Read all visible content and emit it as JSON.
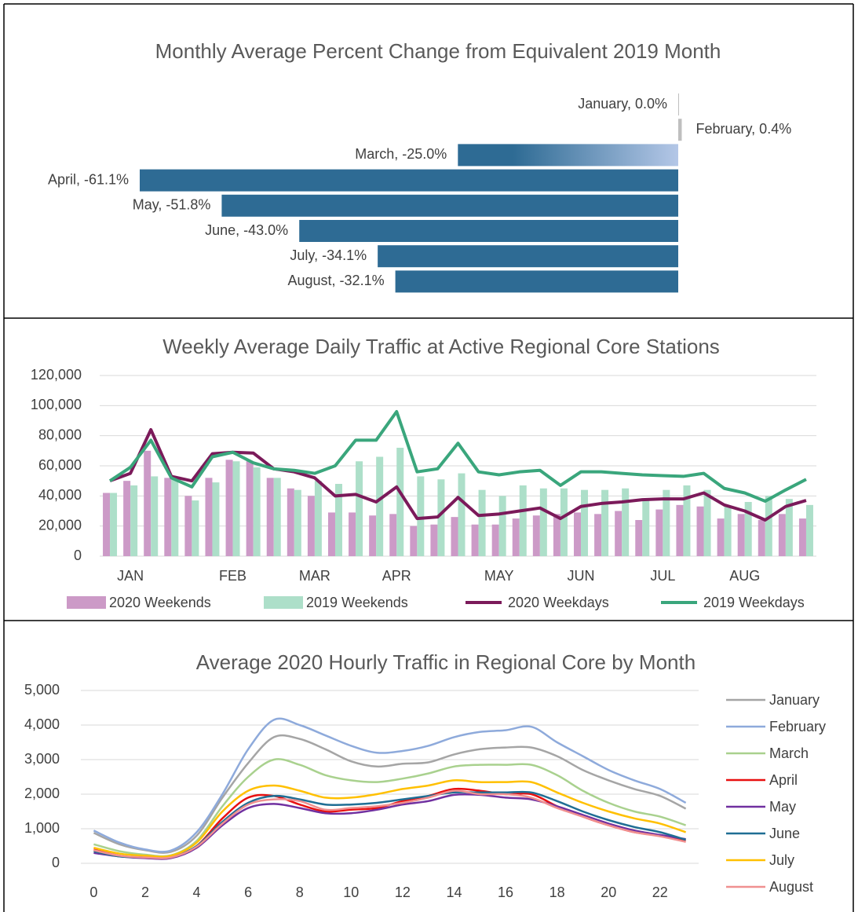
{
  "chart_data": [
    {
      "type": "bar",
      "orientation": "horizontal",
      "title": "Monthly Average Percent Change from Equivalent 2019 Month",
      "values": [
        0.0,
        0.4,
        -25.0,
        -61.1,
        -51.8,
        -43.0,
        -34.1,
        -32.1
      ],
      "value_labels": [
        "January, 0.0%",
        "February, 0.4%",
        "March, -25.0%",
        "April, -61.1%",
        "May, -51.8%",
        "June, -43.0%",
        "July, -34.1%",
        "August, -32.1%"
      ],
      "colors": [
        "#bfbfbf",
        "#bfbfbf",
        [
          "#2e6b94",
          "#b4c7e7"
        ],
        "#2e6b94",
        "#2e6b94",
        "#2e6b94",
        "#2e6b94",
        "#2e6b94"
      ]
    },
    {
      "type": "combo",
      "title": "Weekly Average Daily Traffic at Active Regional Core Stations",
      "categories": [
        null,
        "JAN",
        null,
        null,
        null,
        null,
        "FEB",
        null,
        null,
        null,
        "MAR",
        null,
        null,
        null,
        "APR",
        null,
        null,
        null,
        null,
        "MAY",
        null,
        null,
        null,
        "JUN",
        null,
        null,
        null,
        "JUL",
        null,
        null,
        null,
        "AUG",
        null,
        null,
        null
      ],
      "series": [
        {
          "name": "2020 Weekends",
          "type": "bar",
          "color": "#cc9ac7",
          "values": [
            42000,
            50000,
            70000,
            52000,
            40000,
            52000,
            64000,
            63000,
            52000,
            45000,
            40000,
            29000,
            29000,
            27000,
            28000,
            20000,
            21000,
            26000,
            21000,
            21000,
            25000,
            27000,
            28000,
            29000,
            28000,
            30000,
            24000,
            31000,
            34000,
            33000,
            25000,
            28000,
            24000,
            28000,
            25000
          ]
        },
        {
          "name": "2019 Weekends",
          "type": "bar",
          "color": "#addfc9",
          "values": [
            42000,
            47000,
            53000,
            52000,
            37000,
            49000,
            63000,
            59000,
            52000,
            44000,
            50000,
            48000,
            63000,
            66000,
            72000,
            53000,
            51000,
            55000,
            44000,
            40000,
            47000,
            45000,
            45000,
            44000,
            44000,
            45000,
            38000,
            44000,
            47000,
            44000,
            33000,
            36000,
            40000,
            38000,
            34000
          ]
        },
        {
          "name": "2020 Weekdays",
          "type": "line",
          "color": "#7b1a5a",
          "values": [
            50000,
            55000,
            84000,
            53000,
            50000,
            68000,
            69000,
            68500,
            58000,
            56000,
            52000,
            40000,
            41000,
            36000,
            46000,
            25000,
            26000,
            39000,
            27000,
            28000,
            30000,
            32000,
            25000,
            33000,
            35000,
            36000,
            37500,
            38000,
            38000,
            42000,
            34000,
            30000,
            24000,
            33000,
            37000
          ]
        },
        {
          "name": "2019 Weekdays",
          "type": "line",
          "color": "#3aa67c",
          "values": [
            50000,
            59000,
            77000,
            52000,
            46000,
            66000,
            69000,
            62000,
            58000,
            57000,
            55000,
            60000,
            77000,
            77000,
            96000,
            56000,
            58000,
            75000,
            56000,
            54000,
            56000,
            57000,
            47000,
            56000,
            56000,
            55000,
            54000,
            53500,
            53000,
            55000,
            45000,
            42000,
            36500,
            44000,
            51000
          ]
        }
      ],
      "ylim": [
        0,
        120000
      ],
      "yticks": [
        0,
        {
          "value": 20000,
          "label": "20,000"
        },
        {
          "value": 40000,
          "label": "40,000"
        },
        {
          "value": 60000,
          "label": "60,000"
        },
        {
          "value": 80000,
          "label": "80,000"
        },
        {
          "value": 100000,
          "label": "100,000"
        },
        {
          "value": 120000,
          "label": "120,000"
        }
      ],
      "grid": true,
      "legend": "bottom"
    },
    {
      "type": "line",
      "smooth": true,
      "title": "Average 2020 Hourly Traffic in Regional Core by Month",
      "x": [
        0,
        1,
        2,
        3,
        4,
        5,
        6,
        7,
        8,
        9,
        10,
        11,
        12,
        13,
        14,
        15,
        16,
        17,
        18,
        19,
        20,
        21,
        22,
        23
      ],
      "series": [
        {
          "name": "January",
          "color": "#a5a5a5",
          "values": [
            880,
            550,
            380,
            330,
            800,
            1900,
            2900,
            3650,
            3600,
            3300,
            2950,
            2800,
            2880,
            2920,
            3150,
            3300,
            3350,
            3350,
            3100,
            2700,
            2400,
            2150,
            1950,
            1580
          ]
        },
        {
          "name": "February",
          "color": "#8eaadb",
          "values": [
            950,
            600,
            400,
            370,
            900,
            2000,
            3300,
            4150,
            4000,
            3700,
            3400,
            3200,
            3250,
            3400,
            3650,
            3800,
            3850,
            3950,
            3500,
            3100,
            2700,
            2400,
            2150,
            1750
          ]
        },
        {
          "name": "March",
          "color": "#a9d18e",
          "values": [
            550,
            350,
            250,
            230,
            650,
            1650,
            2500,
            3000,
            2850,
            2550,
            2400,
            2350,
            2450,
            2600,
            2800,
            2850,
            2850,
            2850,
            2550,
            2100,
            1750,
            1500,
            1350,
            1100
          ]
        },
        {
          "name": "April",
          "color": "#e81010",
          "values": [
            400,
            220,
            160,
            160,
            500,
            1300,
            1900,
            1950,
            1700,
            1500,
            1550,
            1600,
            1800,
            1950,
            2150,
            2100,
            2000,
            2000,
            1650,
            1350,
            1100,
            900,
            800,
            650
          ]
        },
        {
          "name": "May",
          "color": "#7030a0",
          "values": [
            300,
            200,
            150,
            150,
            450,
            1100,
            1600,
            1720,
            1600,
            1450,
            1450,
            1550,
            1700,
            1800,
            1980,
            1980,
            1900,
            1850,
            1650,
            1400,
            1150,
            950,
            820,
            700
          ]
        },
        {
          "name": "June",
          "color": "#1f6e94",
          "values": [
            350,
            200,
            180,
            180,
            500,
            1200,
            1750,
            1950,
            1850,
            1700,
            1700,
            1750,
            1850,
            1950,
            2050,
            2050,
            2050,
            2050,
            1800,
            1500,
            1250,
            1050,
            900,
            680
          ]
        },
        {
          "name": "July",
          "color": "#ffc000",
          "values": [
            450,
            280,
            220,
            220,
            600,
            1500,
            2100,
            2250,
            2100,
            1900,
            1900,
            2000,
            2150,
            2250,
            2400,
            2350,
            2350,
            2350,
            2050,
            1750,
            1500,
            1300,
            1150,
            900
          ]
        },
        {
          "name": "August",
          "color": "#f09090",
          "values": [
            380,
            220,
            170,
            170,
            480,
            1150,
            1700,
            1850,
            1800,
            1550,
            1600,
            1650,
            1750,
            1900,
            2100,
            2000,
            2000,
            1900,
            1600,
            1350,
            1100,
            900,
            780,
            620
          ]
        }
      ],
      "xlim": [
        -0.5,
        23.5
      ],
      "xticks": [
        0,
        2,
        4,
        6,
        8,
        10,
        12,
        14,
        16,
        18,
        20,
        22
      ],
      "ylim": [
        0,
        5000
      ],
      "yticks": [
        0,
        {
          "value": 1000,
          "label": "1,000"
        },
        {
          "value": 2000,
          "label": "2,000"
        },
        {
          "value": 3000,
          "label": "3,000"
        },
        {
          "value": 4000,
          "label": "4,000"
        },
        {
          "value": 5000,
          "label": "5,000"
        }
      ],
      "grid": true,
      "legend": "right"
    }
  ]
}
